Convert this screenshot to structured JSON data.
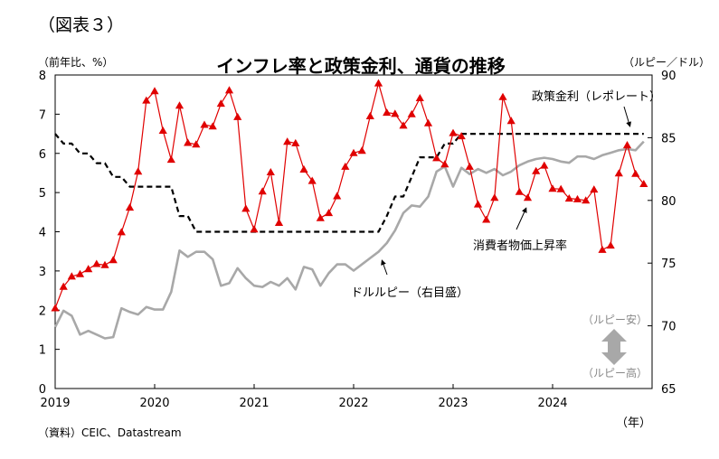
{
  "figure_label": "（図表３）",
  "chart_data": {
    "type": "line",
    "title": "インフレ率と政策金利、通貨の推移",
    "left_axis": {
      "unit": "（前年比、%）",
      "range": [
        0,
        8
      ],
      "ticks": [
        "0",
        "1",
        "2",
        "3",
        "4",
        "5",
        "6",
        "7",
        "8"
      ]
    },
    "right_axis": {
      "unit": "（ルピー／ドル）",
      "range": [
        65,
        90
      ],
      "ticks": [
        "65",
        "70",
        "75",
        "80",
        "85",
        "90"
      ]
    },
    "x_axis": {
      "ticks": [
        "2019",
        "2020",
        "2021",
        "2022",
        "2023",
        "2024"
      ],
      "unit": "（年）",
      "start": "2019-01",
      "end": "2024-12"
    },
    "grid": false,
    "series": [
      {
        "name": "消費者物価上昇率",
        "axis": "left",
        "color": "#e00000",
        "marker": "triangle",
        "values": [
          2.05,
          2.6,
          2.86,
          2.92,
          3.05,
          3.18,
          3.15,
          3.28,
          3.99,
          4.62,
          5.54,
          7.35,
          7.59,
          6.58,
          5.84,
          7.22,
          6.27,
          6.23,
          6.73,
          6.69,
          7.27,
          7.61,
          6.93,
          4.59,
          4.06,
          5.03,
          5.52,
          4.23,
          6.3,
          6.26,
          5.59,
          5.3,
          4.35,
          4.48,
          4.91,
          5.66,
          6.01,
          6.07,
          6.95,
          7.79,
          7.04,
          7.01,
          6.71,
          7.0,
          7.41,
          6.77,
          5.88,
          5.72,
          6.52,
          6.44,
          5.66,
          4.7,
          4.31,
          4.87,
          7.44,
          6.83,
          5.02,
          4.87,
          5.55,
          5.69,
          5.1,
          5.09,
          4.85,
          4.83,
          4.8,
          5.08,
          3.54,
          3.65,
          5.49,
          6.21,
          5.48,
          5.22
        ]
      },
      {
        "name": "政策金利（レポレート）",
        "axis": "left",
        "color": "#000000",
        "dash": true,
        "values": [
          6.5,
          6.25,
          6.25,
          6.0,
          6.0,
          5.75,
          5.75,
          5.4,
          5.4,
          5.15,
          5.15,
          5.15,
          5.15,
          5.15,
          5.15,
          4.4,
          4.4,
          4.0,
          4.0,
          4.0,
          4.0,
          4.0,
          4.0,
          4.0,
          4.0,
          4.0,
          4.0,
          4.0,
          4.0,
          4.0,
          4.0,
          4.0,
          4.0,
          4.0,
          4.0,
          4.0,
          4.0,
          4.0,
          4.0,
          4.0,
          4.4,
          4.9,
          4.9,
          5.4,
          5.9,
          5.9,
          5.9,
          6.25,
          6.25,
          6.5,
          6.5,
          6.5,
          6.5,
          6.5,
          6.5,
          6.5,
          6.5,
          6.5,
          6.5,
          6.5,
          6.5,
          6.5,
          6.5,
          6.5,
          6.5,
          6.5,
          6.5,
          6.5,
          6.5,
          6.5,
          6.5,
          6.5
        ]
      },
      {
        "name": "ドル/ルピー（右目盛）",
        "axis": "right",
        "color": "#a8a8a8",
        "values": [
          69.9,
          71.2,
          70.8,
          69.3,
          69.6,
          69.3,
          69.0,
          69.1,
          71.4,
          71.1,
          70.9,
          71.5,
          71.3,
          71.3,
          72.7,
          76.0,
          75.5,
          75.9,
          75.9,
          75.3,
          73.2,
          73.4,
          74.6,
          73.8,
          73.2,
          73.1,
          73.5,
          73.2,
          73.8,
          72.9,
          74.7,
          74.5,
          73.2,
          74.2,
          74.9,
          74.9,
          74.4,
          74.9,
          75.4,
          75.9,
          76.6,
          77.6,
          79.0,
          79.6,
          79.5,
          80.3,
          82.3,
          82.7,
          81.1,
          82.6,
          82.1,
          82.5,
          82.2,
          82.5,
          82.0,
          82.3,
          82.8,
          83.1,
          83.3,
          83.4,
          83.3,
          83.1,
          83.0,
          83.5,
          83.5,
          83.3,
          83.6,
          83.8,
          84.0,
          84.1,
          84.0,
          84.7
        ]
      }
    ],
    "annotations": [
      {
        "text": "政策金利（レポレート）"
      },
      {
        "text": "消費者物価上昇率"
      },
      {
        "text": "ドルルピー（右目盛）"
      },
      {
        "text": "（ルピー安）"
      },
      {
        "text": "（ルピー高）"
      }
    ]
  },
  "source": "（資料）CEIC、Datastream"
}
